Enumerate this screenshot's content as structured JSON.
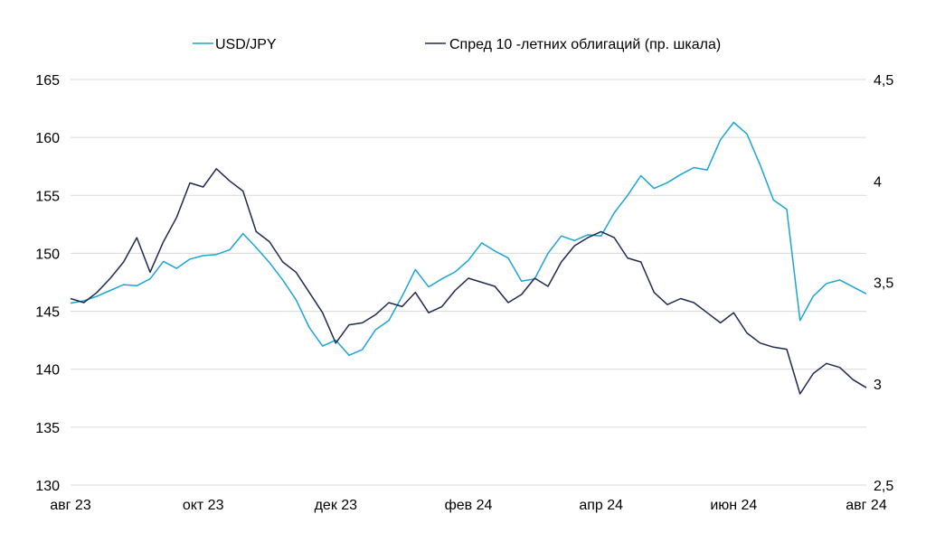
{
  "colors": {
    "usdjpy": "#1ba4d6",
    "spread": "#1e2b4f",
    "grid": "#d9d9d9",
    "text": "#000000"
  },
  "chart_data": {
    "type": "line",
    "title": "",
    "xlabel": "",
    "ylabel": "",
    "legend_position": "top",
    "grid": true,
    "x_tick_labels": [
      "авг 23",
      "окт 23",
      "дек 23",
      "фев 24",
      "апр 24",
      "июн 24",
      "авг 24"
    ],
    "x_range": [
      0,
      12
    ],
    "y_left": {
      "ylim": [
        130,
        165
      ],
      "ticks": [
        "130",
        "135",
        "140",
        "145",
        "150",
        "155",
        "160",
        "165"
      ]
    },
    "y_right": {
      "ylim": [
        2.5,
        4.5
      ],
      "ticks": [
        "2,5",
        "3",
        "3,5",
        "4",
        "4,5"
      ]
    },
    "series": [
      {
        "name": "USD/JPY",
        "axis": "left",
        "color": "#1ba4d6",
        "x": [
          0,
          0.2,
          0.4,
          0.6,
          0.8,
          1.0,
          1.2,
          1.4,
          1.6,
          1.8,
          2.0,
          2.2,
          2.4,
          2.6,
          2.8,
          3.0,
          3.2,
          3.4,
          3.6,
          3.8,
          4.0,
          4.2,
          4.4,
          4.6,
          4.8,
          5.0,
          5.2,
          5.4,
          5.6,
          5.8,
          6.0,
          6.2,
          6.4,
          6.6,
          6.8,
          7.0,
          7.2,
          7.4,
          7.6,
          7.8,
          8.0,
          8.2,
          8.4,
          8.6,
          8.8,
          9.0,
          9.2,
          9.4,
          9.6,
          9.8,
          10.0,
          10.2,
          10.4,
          10.6,
          10.8,
          11.0,
          11.2,
          11.4,
          11.6,
          11.8,
          12.0
        ],
        "values": [
          145.7,
          145.9,
          146.3,
          146.8,
          147.3,
          147.2,
          147.8,
          149.3,
          148.7,
          149.5,
          149.8,
          149.9,
          150.3,
          151.7,
          150.5,
          149.2,
          147.7,
          146.0,
          143.6,
          142.0,
          142.5,
          141.2,
          141.7,
          143.4,
          144.2,
          146.3,
          148.6,
          147.1,
          147.8,
          148.4,
          149.4,
          150.9,
          150.2,
          149.6,
          147.6,
          147.8,
          150.0,
          151.5,
          151.1,
          151.6,
          151.5,
          153.5,
          155.0,
          156.7,
          155.6,
          156.1,
          156.8,
          157.4,
          157.2,
          159.8,
          161.3,
          160.3,
          157.6,
          154.6,
          153.8,
          144.2,
          146.3,
          147.4,
          147.7,
          147.1,
          146.5
        ]
      },
      {
        "name": "Спред 10 -летних облигаций (пр. шкала)",
        "axis": "right",
        "color": "#1e2b4f",
        "x": [
          0,
          0.2,
          0.4,
          0.6,
          0.8,
          1.0,
          1.2,
          1.4,
          1.6,
          1.8,
          2.0,
          2.2,
          2.4,
          2.6,
          2.8,
          3.0,
          3.2,
          3.4,
          3.6,
          3.8,
          4.0,
          4.2,
          4.4,
          4.6,
          4.8,
          5.0,
          5.2,
          5.4,
          5.6,
          5.8,
          6.0,
          6.2,
          6.4,
          6.6,
          6.8,
          7.0,
          7.2,
          7.4,
          7.6,
          7.8,
          8.0,
          8.2,
          8.4,
          8.6,
          8.8,
          9.0,
          9.2,
          9.4,
          9.6,
          9.8,
          10.0,
          10.2,
          10.4,
          10.6,
          10.8,
          11.0,
          11.2,
          11.4,
          11.6,
          11.8,
          12.0
        ],
        "values": [
          3.42,
          3.4,
          3.45,
          3.52,
          3.6,
          3.72,
          3.55,
          3.7,
          3.82,
          3.99,
          3.97,
          4.06,
          4.0,
          3.95,
          3.75,
          3.7,
          3.6,
          3.55,
          3.45,
          3.35,
          3.2,
          3.29,
          3.3,
          3.34,
          3.4,
          3.38,
          3.45,
          3.35,
          3.38,
          3.46,
          3.52,
          3.5,
          3.48,
          3.4,
          3.44,
          3.52,
          3.48,
          3.6,
          3.68,
          3.72,
          3.75,
          3.72,
          3.62,
          3.6,
          3.45,
          3.39,
          3.42,
          3.4,
          3.35,
          3.3,
          3.35,
          3.25,
          3.2,
          3.18,
          3.17,
          2.95,
          3.05,
          3.1,
          3.08,
          3.02,
          2.98
        ]
      }
    ]
  }
}
